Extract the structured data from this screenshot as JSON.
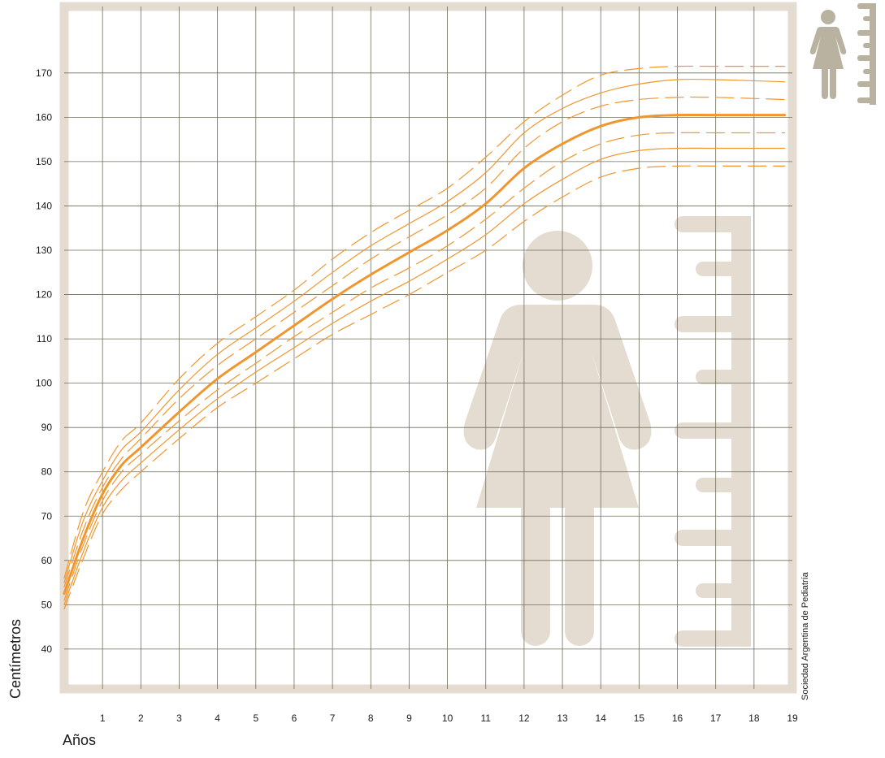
{
  "chart_data": {
    "type": "line",
    "xlabel": "Años",
    "ylabel": "Centímetros",
    "credit": "Sociedad Argentina de Pediatría",
    "xlim": [
      0,
      19
    ],
    "ylim": [
      31,
      185
    ],
    "x_ticks": [
      1,
      2,
      3,
      4,
      5,
      6,
      7,
      8,
      9,
      10,
      11,
      12,
      13,
      14,
      15,
      16,
      17,
      18,
      19
    ],
    "y_ticks": [
      40,
      50,
      60,
      70,
      80,
      90,
      100,
      110,
      120,
      130,
      140,
      150,
      160,
      170
    ],
    "grid": true,
    "colors": {
      "line": "#f0962e",
      "frame": "#e4dcd0",
      "grid": "#6e6e5a",
      "icon": "#b9b2a0"
    },
    "series": [
      {
        "style": "dashed",
        "x": [
          0,
          0.5,
          1,
          1.5,
          2,
          3,
          4,
          5,
          6,
          7,
          8,
          9,
          10,
          11,
          12,
          13,
          14,
          15,
          16,
          17,
          18.8
        ],
        "y": [
          56,
          71,
          80,
          87,
          91,
          101,
          109,
          115,
          121,
          128,
          134,
          139,
          144,
          151,
          159,
          165,
          169.5,
          171,
          171.5,
          171.5,
          171.5
        ]
      },
      {
        "style": "solid",
        "x": [
          0,
          0.5,
          1,
          1.5,
          2,
          3,
          4,
          5,
          6,
          7,
          8,
          9,
          10,
          11,
          12,
          13,
          14,
          15,
          16,
          17,
          18.8
        ],
        "y": [
          55,
          69,
          78,
          85,
          89,
          98.5,
          106.5,
          112.5,
          118.5,
          125,
          131,
          136,
          141,
          147.5,
          156.5,
          162,
          165.5,
          167.5,
          168.5,
          168.5,
          168
        ]
      },
      {
        "style": "dashed",
        "x": [
          0,
          0.5,
          1,
          1.5,
          2,
          3,
          4,
          5,
          6,
          7,
          8,
          9,
          10,
          11,
          12,
          13,
          14,
          15,
          16,
          17,
          18.8
        ],
        "y": [
          54,
          67,
          76.5,
          83,
          87.5,
          96.5,
          104,
          110,
          116,
          122,
          128,
          133,
          138,
          144,
          153,
          159,
          162.5,
          164,
          164.5,
          164.5,
          164
        ]
      },
      {
        "style": "bold",
        "x": [
          0,
          0.5,
          1,
          1.5,
          2,
          3,
          4,
          5,
          6,
          7,
          8,
          9,
          10,
          11,
          12,
          13,
          14,
          15,
          16,
          17,
          18.8
        ],
        "y": [
          52.5,
          65,
          75,
          81.5,
          85.5,
          93.5,
          101,
          107,
          113,
          119,
          124.5,
          129.5,
          134.5,
          140.5,
          148.5,
          154,
          158,
          160,
          160.5,
          160.5,
          160.5
        ]
      },
      {
        "style": "dashed",
        "x": [
          0,
          0.5,
          1,
          1.5,
          2,
          3,
          4,
          5,
          6,
          7,
          8,
          9,
          10,
          11,
          12,
          13,
          14,
          15,
          16,
          17,
          18.8
        ],
        "y": [
          51,
          63.5,
          73.5,
          80,
          84,
          91.5,
          98.5,
          104.5,
          110.5,
          116,
          121.5,
          126,
          131,
          137,
          144,
          150,
          154,
          156,
          156.5,
          156.5,
          156.5
        ]
      },
      {
        "style": "solid",
        "x": [
          0,
          0.5,
          1,
          1.5,
          2,
          3,
          4,
          5,
          6,
          7,
          8,
          9,
          10,
          11,
          12,
          13,
          14,
          15,
          16,
          17,
          18.8
        ],
        "y": [
          50,
          62,
          72,
          78,
          82,
          89.5,
          96.5,
          102.5,
          108,
          113.5,
          118.5,
          123,
          128,
          133.5,
          140.5,
          146,
          150.5,
          152.5,
          153,
          153,
          153
        ]
      },
      {
        "style": "dashed",
        "x": [
          0,
          0.5,
          1,
          1.5,
          2,
          3,
          4,
          5,
          6,
          7,
          8,
          9,
          10,
          11,
          12,
          13,
          14,
          15,
          16,
          17,
          18.8
        ],
        "y": [
          49,
          60.5,
          70.5,
          76,
          80,
          87.5,
          94.5,
          100,
          105.5,
          111,
          115.5,
          120,
          125,
          130,
          136.5,
          142,
          146.5,
          148.5,
          149,
          149,
          149
        ]
      }
    ]
  }
}
